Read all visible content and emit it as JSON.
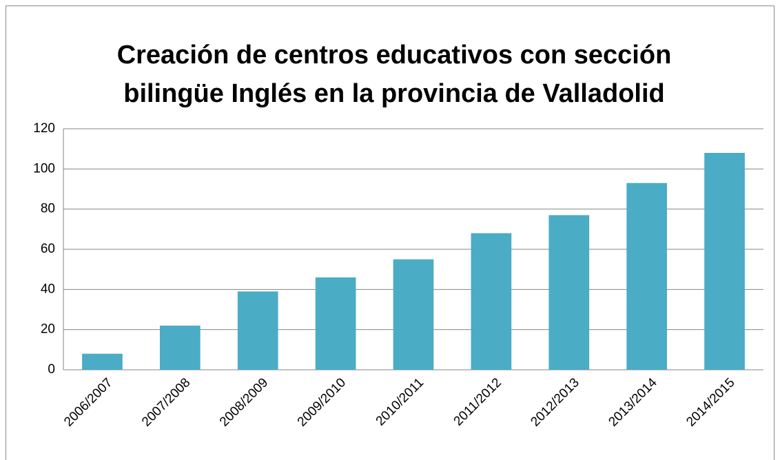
{
  "chart_data": {
    "type": "bar",
    "title": [
      "Creación de centros educativos con sección",
      "bilingüe Inglés en la provincia de Valladolid"
    ],
    "categories": [
      "2006/2007",
      "2007/2008",
      "2008/2009",
      "2009/2010",
      "2010/2011",
      "2011/2012",
      "2012/2013",
      "2013/2014",
      "2014/2015"
    ],
    "values": [
      8,
      22,
      39,
      46,
      55,
      68,
      77,
      93,
      108
    ],
    "color": "#4bacc6",
    "ylim": [
      0,
      120
    ],
    "yticks": [
      0,
      20,
      40,
      60,
      80,
      100,
      120
    ],
    "grid": true
  }
}
